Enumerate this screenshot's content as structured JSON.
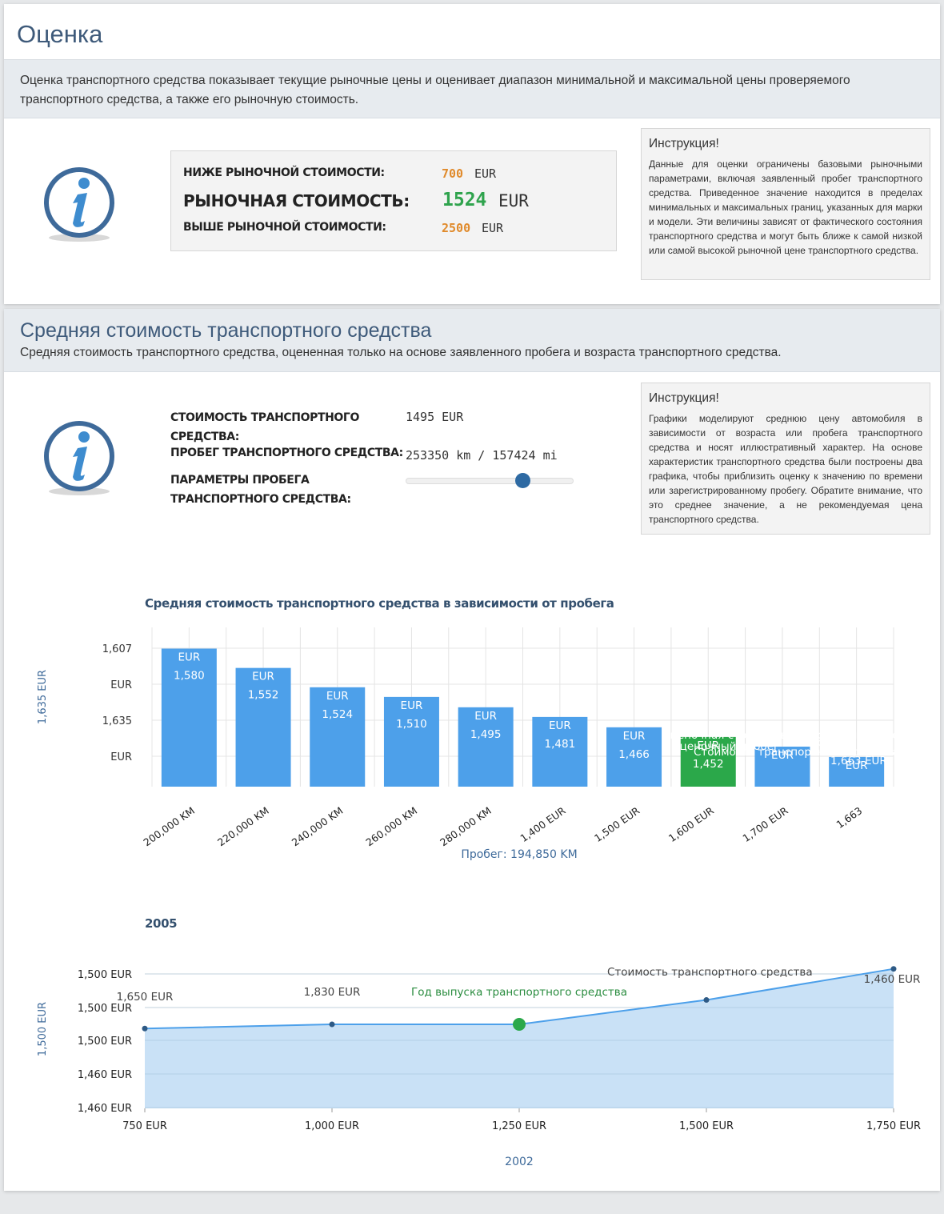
{
  "valuation": {
    "title": "Оценка",
    "description": "Оценка транспортного средства показывает текущие рыночные цены и оценивает диапазон минимальной и максимальной цены проверяемого транспортного средства, а также его рыночную стоимость.",
    "below_label": "НИЖЕ РЫНОЧНОЙ СТОИМОСТИ:",
    "below_value": "700",
    "market_label": "РЫНОЧНАЯ СТОИМОСТЬ:",
    "market_value": "1524",
    "above_label": "ВЫШЕ РЫНОЧНОЙ СТОИМОСТИ:",
    "above_value": "2500",
    "currency": "EUR",
    "instruction_title": "Инструкция!",
    "instruction_text": "Данные для оценки ограничены базовыми рыночными параметрами, включая заявленный пробег транспортного средства. Приведенное значение находится в пределах минимальных и максимальных границ, указанных для марки и модели. Эти величины зависят от фактического состояния транспортного средства и могут быть ближе к самой низкой или самой высокой рыночной цене транспортного средства."
  },
  "average": {
    "title": "Средняя стоимость транспортного средства",
    "description": "Средняя стоимость транспортного средства, оцененная только на основе заявленного пробега и возраста транспортного средства.",
    "cost_label": "СТОИМОСТЬ ТРАНСПОРТНОГО СРЕДСТВА:",
    "cost_value": "1495 EUR",
    "mileage_label": "ПРОБЕГ ТРАНСПОРТНОГО СРЕДСТВА:",
    "mileage_value": "253350 km / 157424 mi",
    "params_label": "ПАРАМЕТРЫ ПРОБЕГА ТРАНСПОРТНОГО СРЕДСТВА:",
    "slider_position": 0.7,
    "instruction_title": "Инструкция!",
    "instruction_text": "Графики моделируют среднюю цену автомобиля в зависимости от возраста или пробега транспортного средства и носят иллюстративный характер. На основе характеристик транспортного средства были построены два графика, чтобы приблизить оценку к значению по времени или зарегистрированному пробегу. Обратите внимание, что это среднее значение, а не рекомендуемая цена транспортного средства."
  },
  "colors": {
    "accent": "#3e5a7a",
    "bar": "#4da0ea",
    "bar_highlight": "#2ba84a",
    "orange": "#e08a2b",
    "green": "#2fa34d"
  },
  "chart_data": [
    {
      "type": "bar",
      "title": "Средняя стоимость транспортного средства в зависимости от пробега",
      "ylabel": "1,635 EUR",
      "xlabel": "Пробег: 194,850 KM",
      "ytick_labels": [
        "1,607",
        "EUR",
        "1,635",
        "EUR"
      ],
      "categories": [
        "200,000 KM",
        "220,000 KM",
        "240,000 KM",
        "260,000 KM",
        "280,000 KM",
        "1,400 EUR",
        "1,500 EUR",
        "1,600 EUR",
        "1,700 EUR",
        "1,663"
      ],
      "values": [
        1580,
        1552,
        1524,
        1510,
        1495,
        1481,
        1466,
        1452,
        1438,
        1423
      ],
      "data_labels": [
        "1,580",
        "1,552",
        "1,524",
        "1,510",
        "1,495",
        "1,481",
        "1,466",
        "1,452",
        "",
        ""
      ],
      "label_unit": "EUR",
      "highlight_index": 7,
      "overlay_labels": [
        "Оценочная стоимость транспортного средства",
        "Оценочный пробег",
        "Пробег: 185,10",
        "Стоимость транспортного средства",
        "1,663 EUR"
      ],
      "ylim": [
        1380,
        1620
      ]
    },
    {
      "type": "area",
      "title": "2005",
      "ylabel": "1,500 EUR",
      "xlabel": "2002",
      "x_tick_labels": [
        "750 EUR",
        "1,000 EUR",
        "1,250 EUR",
        "1,500 EUR",
        "1,750 EUR"
      ],
      "y_tick_labels": [
        "1,500 EUR",
        "1,500 EUR",
        "1,500 EUR",
        "1,460 EUR",
        "1,460 EUR"
      ],
      "x": [
        750,
        1000,
        1250,
        1500,
        1750
      ],
      "y": [
        1515,
        1520,
        1520,
        1549,
        1586
      ],
      "highlight_index": 2,
      "point_labels": [
        "1,650 EUR",
        "1,830 EUR",
        "Год выпуска транспортного средства",
        "Стоимость транспортного средства",
        "1,460 EUR"
      ],
      "ylim": [
        1420,
        1600
      ]
    }
  ]
}
